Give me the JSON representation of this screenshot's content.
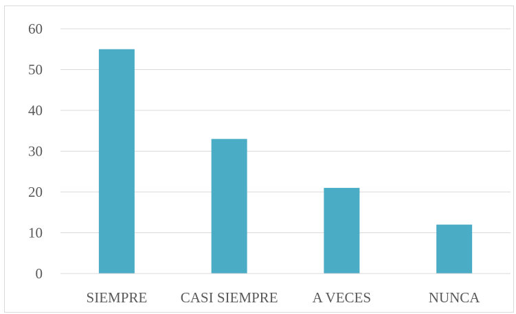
{
  "chart_data": {
    "type": "bar",
    "title": "",
    "xlabel": "",
    "ylabel": "",
    "categories": [
      "SIEMPRE",
      "CASI SIEMPRE",
      "A VECES",
      "NUNCA"
    ],
    "values": [
      55,
      33,
      21,
      12
    ],
    "ylim": [
      0,
      60
    ],
    "yticks": [
      "0",
      "10",
      "20",
      "30",
      "40",
      "50",
      "60"
    ],
    "grid": true,
    "legend": "none",
    "bar_color": "#4bacc6",
    "grid_color": "#d9d9d9",
    "axis_color": "#d9d9d9",
    "text_color": "#595959"
  }
}
